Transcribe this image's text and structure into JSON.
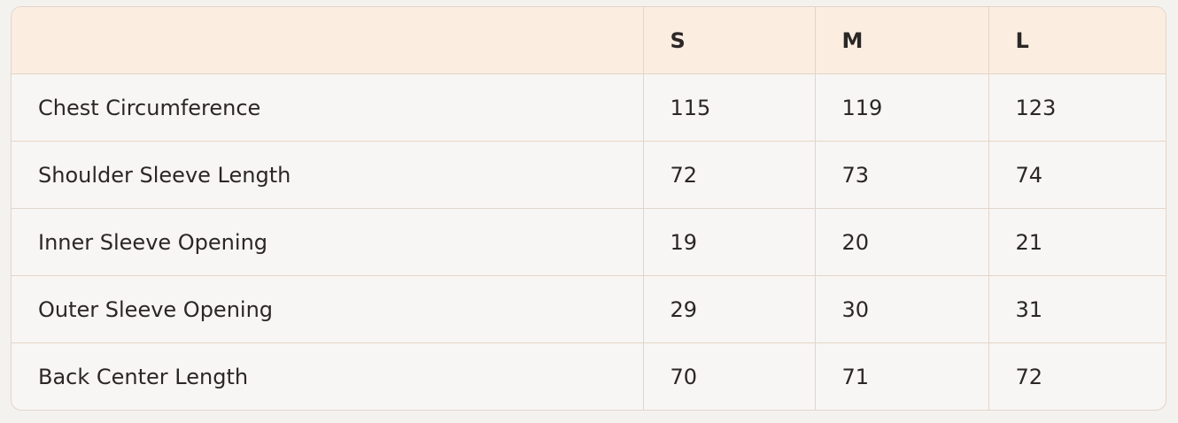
{
  "table": {
    "headers": [
      "",
      "S",
      "M",
      "L"
    ],
    "rows": [
      {
        "label": "Chest Circumference",
        "values": [
          "115",
          "119",
          "123"
        ]
      },
      {
        "label": "Shoulder Sleeve Length",
        "values": [
          "72",
          "73",
          "74"
        ]
      },
      {
        "label": "Inner Sleeve Opening",
        "values": [
          "19",
          "20",
          "21"
        ]
      },
      {
        "label": "Outer Sleeve Opening",
        "values": [
          "29",
          "30",
          "31"
        ]
      },
      {
        "label": "Back Center Length",
        "values": [
          "70",
          "71",
          "72"
        ]
      }
    ]
  },
  "colors": {
    "header_bg": "#fcede1",
    "row_bg": "#f8f6f4",
    "border": "#e3d5c9"
  }
}
